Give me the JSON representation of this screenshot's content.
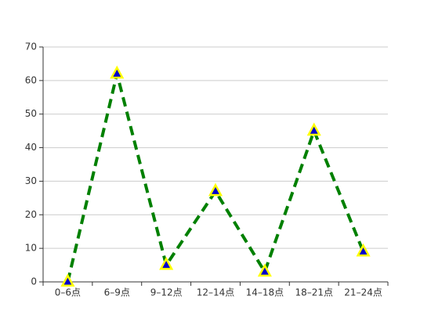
{
  "chart_data": {
    "type": "line",
    "categories": [
      "0–6点",
      "6–9点",
      "9–12点",
      "12–14点",
      "14–18点",
      "18–21点",
      "21–24点"
    ],
    "series": [
      {
        "color": "#008000",
        "marker": "triangle",
        "marker_fill": "#0000cc",
        "marker_stroke": "#ffff00",
        "dashed": true,
        "values": [
          0,
          62,
          5,
          27,
          3,
          45,
          9
        ]
      }
    ],
    "ylim": [
      0,
      70
    ],
    "yticks": [
      0,
      10,
      20,
      30,
      40,
      50,
      60,
      70
    ],
    "grid": true
  }
}
